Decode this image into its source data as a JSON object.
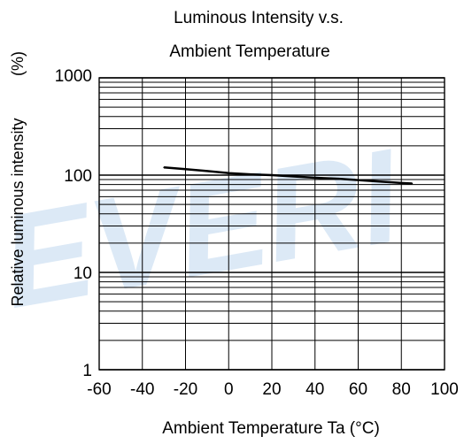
{
  "chart_data": {
    "type": "line",
    "title_lines": [
      "Luminous Intensity v.s.",
      "Ambient Temperature"
    ],
    "xlabel": "Ambient Temperature Ta (°C)",
    "ylabel": "Relative luminous intensity",
    "ylabel_unit": "(%)",
    "xlim": [
      -60,
      100
    ],
    "ylim": [
      1,
      1000
    ],
    "yscale": "log",
    "grid": true,
    "x_ticks": [
      -60,
      -40,
      -20,
      0,
      20,
      40,
      60,
      80,
      100
    ],
    "x_tick_labels": [
      "-60",
      "-40",
      "-20",
      "0",
      "20",
      "40",
      "60",
      "80",
      "100"
    ],
    "y_ticks": [
      1,
      10,
      100,
      1000
    ],
    "y_tick_labels": [
      "1",
      "10",
      "100",
      "1000"
    ],
    "series": [
      {
        "x": [
          -30,
          -20,
          -10,
          0,
          10,
          20,
          30,
          40,
          50,
          60,
          70,
          80,
          85
        ],
        "y": [
          120,
          115,
          110,
          105,
          102,
          100,
          97,
          94,
          92,
          89,
          86,
          83,
          82
        ]
      }
    ],
    "watermark": "EVERI",
    "colors": {
      "line": "#000000",
      "grid": "#000000",
      "watermark": "#dce9f6"
    }
  }
}
